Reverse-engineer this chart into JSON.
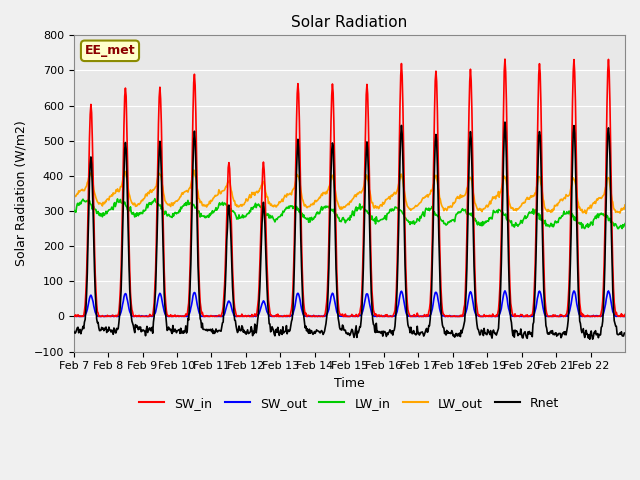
{
  "title": "Solar Radiation",
  "xlabel": "Time",
  "ylabel": "Solar Radiation (W/m2)",
  "ylim": [
    -100,
    800
  ],
  "annotation": "EE_met",
  "x_tick_labels": [
    "Feb 7",
    "Feb 8",
    "Feb 9",
    "Feb 10",
    "Feb 11",
    "Feb 12",
    "Feb 13",
    "Feb 14",
    "Feb 15",
    "Feb 16",
    "Feb 17",
    "Feb 18",
    "Feb 19",
    "Feb 20",
    "Feb 21",
    "Feb 22"
  ],
  "series": {
    "SW_in": {
      "color": "#FF0000",
      "lw": 1.2
    },
    "SW_out": {
      "color": "#0000FF",
      "lw": 1.2
    },
    "LW_in": {
      "color": "#00CC00",
      "lw": 1.2
    },
    "LW_out": {
      "color": "#FFA500",
      "lw": 1.2
    },
    "Rnet": {
      "color": "#000000",
      "lw": 1.2
    }
  },
  "sw_peaks": [
    605,
    650,
    650,
    690,
    440,
    440,
    660,
    660,
    660,
    720,
    700,
    700,
    730,
    720,
    730,
    730
  ],
  "background_color": "#E8E8E8",
  "grid_color": "#FFFFFF",
  "n_days": 16,
  "pts_per_day": 48
}
